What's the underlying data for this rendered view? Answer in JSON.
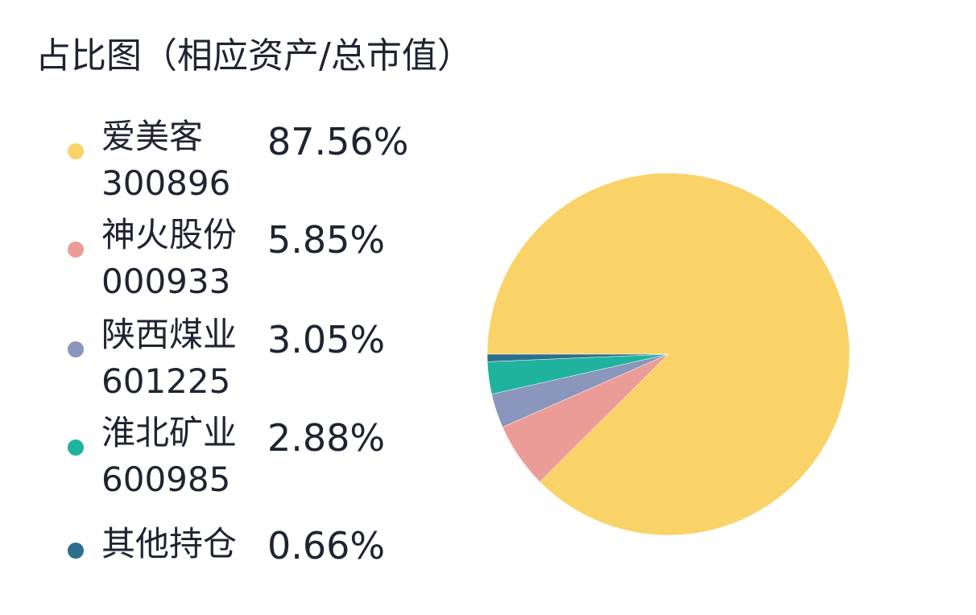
{
  "title": "占比图（相应资产/总市值）",
  "chart_data": {
    "type": "pie",
    "title": "占比图（相应资产/总市值）",
    "legend_position": "left",
    "slices": [
      {
        "name": "爱美客",
        "code": "300896",
        "percent_label": "87.56%",
        "value": 87.56,
        "color": "#f9d368"
      },
      {
        "name": "神火股份",
        "code": "000933",
        "percent_label": "5.85%",
        "value": 5.85,
        "color": "#ec9c96"
      },
      {
        "name": "陕西煤业",
        "code": "601225",
        "percent_label": "3.05%",
        "value": 3.05,
        "color": "#8a96bc"
      },
      {
        "name": "淮北矿业",
        "code": "600985",
        "percent_label": "2.88%",
        "value": 2.88,
        "color": "#1fb39d"
      },
      {
        "name": "其他持仓",
        "code": "",
        "percent_label": "0.66%",
        "value": 0.66,
        "color": "#2e6e8e"
      }
    ]
  }
}
